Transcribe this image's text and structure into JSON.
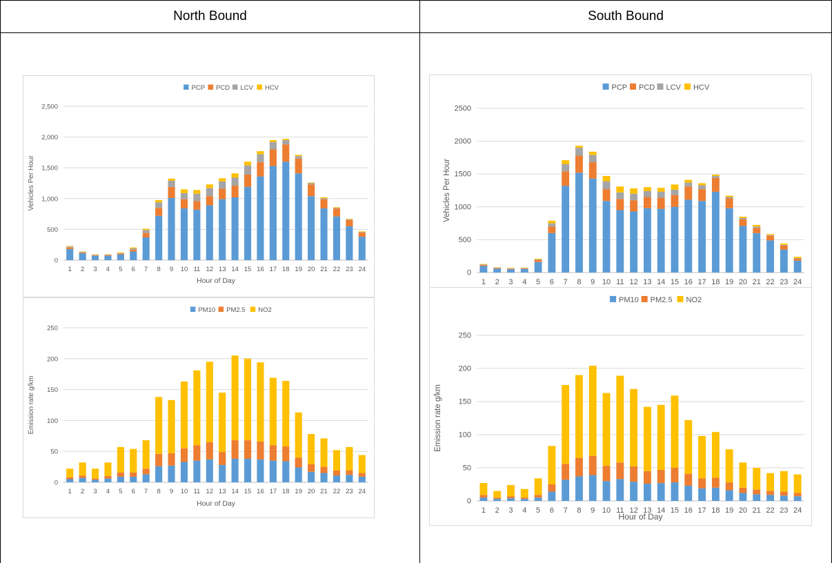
{
  "table": {
    "header_left": "North Bound",
    "header_right": "South Bound"
  },
  "chart_data": [
    {
      "id": "nb_traffic",
      "type": "bar",
      "stacked": true,
      "title": "",
      "xlabel": "Hour of Day",
      "ylabel": "Vehicles Per Hour",
      "ylim": [
        0,
        2500
      ],
      "yticks": [
        0,
        500,
        1000,
        1500,
        2000,
        2500
      ],
      "ytick_labels": [
        "0",
        "500",
        "1,000",
        "1,500",
        "2,000",
        "2,500"
      ],
      "grid": true,
      "legend": "top-center",
      "categories": [
        "1",
        "2",
        "3",
        "4",
        "5",
        "6",
        "7",
        "8",
        "9",
        "10",
        "11",
        "12",
        "13",
        "14",
        "15",
        "16",
        "17",
        "18",
        "19",
        "20",
        "21",
        "22",
        "23",
        "24"
      ],
      "series": [
        {
          "name": "PCP",
          "color": "#5b9bd5",
          "values": [
            180,
            110,
            70,
            70,
            90,
            140,
            370,
            720,
            1010,
            840,
            820,
            890,
            990,
            1020,
            1190,
            1360,
            1530,
            1600,
            1410,
            1040,
            840,
            710,
            550,
            380
          ]
        },
        {
          "name": "PCD",
          "color": "#ed7d31",
          "values": [
            25,
            15,
            10,
            12,
            15,
            30,
            70,
            130,
            180,
            150,
            140,
            150,
            170,
            190,
            200,
            230,
            270,
            280,
            240,
            190,
            150,
            130,
            100,
            70
          ]
        },
        {
          "name": "LCV",
          "color": "#a5a5a5",
          "values": [
            15,
            10,
            8,
            8,
            10,
            20,
            50,
            90,
            100,
            100,
            120,
            130,
            120,
            130,
            150,
            130,
            120,
            70,
            40,
            20,
            15,
            10,
            10,
            8
          ]
        },
        {
          "name": "HCV",
          "color": "#ffc000",
          "values": [
            10,
            5,
            5,
            5,
            10,
            15,
            20,
            35,
            35,
            60,
            60,
            60,
            50,
            70,
            60,
            50,
            30,
            20,
            20,
            10,
            15,
            10,
            10,
            10
          ]
        }
      ]
    },
    {
      "id": "nb_emission",
      "type": "bar",
      "stacked": true,
      "title": "",
      "xlabel": "Hour of Day",
      "ylabel": "Emission rate g/km",
      "ylim": [
        0,
        250
      ],
      "yticks": [
        0,
        50,
        100,
        150,
        200,
        250
      ],
      "ytick_labels": [
        "0",
        "50",
        "100",
        "150",
        "200",
        "250"
      ],
      "grid": true,
      "legend": "top-center",
      "categories": [
        "1",
        "2",
        "3",
        "4",
        "5",
        "6",
        "7",
        "8",
        "9",
        "10",
        "11",
        "12",
        "13",
        "14",
        "15",
        "16",
        "17",
        "18",
        "19",
        "20",
        "21",
        "22",
        "23",
        "24"
      ],
      "series": [
        {
          "name": "PM10",
          "color": "#5b9bd5",
          "values": [
            5,
            7,
            4,
            6,
            9,
            9,
            13,
            26,
            27,
            33,
            35,
            37,
            28,
            38,
            38,
            37,
            35,
            34,
            24,
            17,
            15,
            11,
            12,
            9
          ]
        },
        {
          "name": "PM2.5",
          "color": "#ed7d31",
          "values": [
            3,
            4,
            2,
            4,
            7,
            7,
            9,
            20,
            20,
            22,
            25,
            28,
            21,
            30,
            30,
            29,
            25,
            24,
            16,
            12,
            10,
            8,
            7,
            6
          ]
        },
        {
          "name": "NO2",
          "color": "#ffc000",
          "values": [
            14,
            21,
            16,
            22,
            41,
            38,
            46,
            92,
            86,
            108,
            121,
            130,
            96,
            137,
            132,
            128,
            109,
            106,
            73,
            49,
            46,
            33,
            38,
            29
          ]
        }
      ]
    },
    {
      "id": "sb_traffic",
      "type": "bar",
      "stacked": true,
      "title": "",
      "xlabel": "",
      "ylabel": "Vehicles Per Hour",
      "ylim": [
        0,
        2500
      ],
      "yticks": [
        0,
        500,
        1000,
        1500,
        2000,
        2500
      ],
      "ytick_labels": [
        "0",
        "500",
        "1000",
        "1500",
        "2000",
        "2500"
      ],
      "grid": true,
      "legend": "top-center",
      "categories": [
        "1",
        "2",
        "3",
        "4",
        "5",
        "6",
        "7",
        "8",
        "9",
        "10",
        "11",
        "12",
        "13",
        "14",
        "15",
        "16",
        "17",
        "18",
        "19",
        "20",
        "21",
        "22",
        "23",
        "24"
      ],
      "series": [
        {
          "name": "PCP",
          "color": "#5b9bd5",
          "values": [
            100,
            60,
            50,
            55,
            160,
            600,
            1320,
            1520,
            1430,
            1090,
            950,
            930,
            980,
            970,
            1000,
            1110,
            1090,
            1230,
            980,
            710,
            600,
            490,
            350,
            180
          ]
        },
        {
          "name": "PCD",
          "color": "#ed7d31",
          "values": [
            15,
            10,
            10,
            10,
            30,
            100,
            220,
            260,
            250,
            180,
            170,
            170,
            170,
            170,
            180,
            200,
            180,
            210,
            150,
            100,
            80,
            70,
            60,
            30
          ]
        },
        {
          "name": "LCV",
          "color": "#a5a5a5",
          "values": [
            8,
            5,
            5,
            5,
            10,
            50,
            110,
            120,
            110,
            120,
            100,
            100,
            90,
            90,
            80,
            60,
            60,
            30,
            20,
            20,
            20,
            10,
            10,
            10
          ]
        },
        {
          "name": "HCV",
          "color": "#ffc000",
          "values": [
            7,
            5,
            5,
            5,
            10,
            40,
            60,
            30,
            50,
            80,
            90,
            80,
            60,
            60,
            80,
            40,
            30,
            20,
            20,
            20,
            25,
            15,
            20,
            20
          ]
        }
      ]
    },
    {
      "id": "sb_emission",
      "type": "bar",
      "stacked": true,
      "title": "",
      "xlabel": "Hour of Day",
      "ylabel": "Emission rate g/km",
      "ylim": [
        0,
        250
      ],
      "yticks": [
        0,
        50,
        100,
        150,
        200,
        250
      ],
      "ytick_labels": [
        "0",
        "50",
        "100",
        "150",
        "200",
        "250"
      ],
      "grid": true,
      "legend": "top-center",
      "categories": [
        "1",
        "2",
        "3",
        "4",
        "5",
        "6",
        "7",
        "8",
        "9",
        "10",
        "11",
        "12",
        "13",
        "14",
        "15",
        "16",
        "17",
        "18",
        "19",
        "20",
        "21",
        "22",
        "23",
        "24"
      ],
      "series": [
        {
          "name": "PM10",
          "color": "#5b9bd5",
          "values": [
            5,
            3,
            4,
            3,
            5,
            14,
            32,
            37,
            39,
            30,
            33,
            29,
            26,
            27,
            28,
            23,
            19,
            20,
            16,
            12,
            10,
            9,
            8,
            7
          ]
        },
        {
          "name": "PM2.5",
          "color": "#ed7d31",
          "values": [
            4,
            2,
            3,
            2,
            4,
            11,
            24,
            28,
            29,
            23,
            25,
            23,
            19,
            20,
            22,
            18,
            15,
            15,
            12,
            8,
            7,
            6,
            6,
            5
          ]
        },
        {
          "name": "NO2",
          "color": "#ffc000",
          "values": [
            18,
            10,
            17,
            13,
            25,
            58,
            119,
            125,
            136,
            110,
            131,
            117,
            97,
            98,
            109,
            81,
            64,
            69,
            50,
            38,
            33,
            27,
            31,
            28
          ]
        }
      ]
    }
  ]
}
